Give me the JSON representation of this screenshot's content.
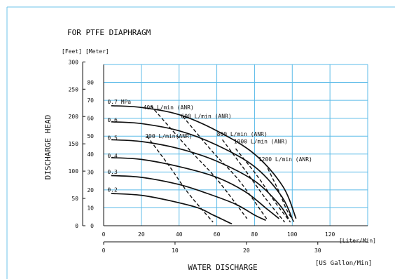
{
  "chart_data": {
    "type": "line",
    "title": "FOR PTFE DIAPHRAGM",
    "xlabel": "WATER DISCHARGE",
    "ylabel": "DISCHARGE HEAD",
    "x_unit_primary": "[Liter/Min]",
    "x_unit_secondary": "[US Gallon/Min]",
    "y_unit_feet": "[Feet]",
    "y_unit_meter": "[Meter]",
    "x_range": [
      0,
      140
    ],
    "y_range": [
      0,
      90
    ],
    "grid": true,
    "x_ticks": [
      {
        "value": 0,
        "label": "0"
      },
      {
        "value": 20,
        "label": "20"
      },
      {
        "value": 40,
        "label": "40"
      },
      {
        "value": 60,
        "label": "60"
      },
      {
        "value": 80,
        "label": "80"
      },
      {
        "value": 100,
        "label": "100"
      },
      {
        "value": 120,
        "label": "120"
      }
    ],
    "y_ticks_meter": [
      {
        "value": 0,
        "label": "0"
      },
      {
        "value": 10,
        "label": "10"
      },
      {
        "value": 20,
        "label": "20"
      },
      {
        "value": 30,
        "label": "30"
      },
      {
        "value": 40,
        "label": "40"
      },
      {
        "value": 50,
        "label": "50"
      },
      {
        "value": 60,
        "label": "60"
      },
      {
        "value": 70,
        "label": "70"
      },
      {
        "value": 80,
        "label": "80"
      }
    ],
    "y_ticks_feet": [
      {
        "value": 0,
        "label": "0"
      },
      {
        "value": 50,
        "label": "50"
      },
      {
        "value": 100,
        "label": "100"
      },
      {
        "value": 150,
        "label": "150"
      },
      {
        "value": 200,
        "label": "200"
      },
      {
        "value": 250,
        "label": "250"
      },
      {
        "value": 300,
        "label": "300"
      }
    ],
    "x_ticks_gallon": [
      {
        "value": 0,
        "label": "0"
      },
      {
        "value": 10,
        "label": "10"
      },
      {
        "value": 20,
        "label": "20"
      },
      {
        "value": 30,
        "label": "30"
      }
    ],
    "series": [
      {
        "name": "0.7 MPa",
        "x": [
          4,
          20,
          40,
          60,
          80,
          95,
          102
        ],
        "y": [
          67,
          66,
          62,
          53,
          40,
          22,
          4
        ]
      },
      {
        "name": "0.6",
        "x": [
          4,
          20,
          40,
          60,
          80,
          94,
          100
        ],
        "y": [
          58,
          57,
          53,
          45,
          33,
          17,
          4
        ]
      },
      {
        "name": "0.5",
        "x": [
          4,
          20,
          40,
          60,
          80,
          93,
          98
        ],
        "y": [
          48,
          47,
          43,
          36,
          25,
          12,
          4
        ]
      },
      {
        "name": "0.4",
        "x": [
          4,
          20,
          40,
          60,
          75,
          87,
          93
        ],
        "y": [
          38,
          37,
          33,
          27,
          19,
          9,
          4
        ]
      },
      {
        "name": "0.3",
        "x": [
          4,
          20,
          40,
          55,
          70,
          80,
          86
        ],
        "y": [
          28,
          27,
          23,
          18,
          12,
          6,
          3
        ]
      },
      {
        "name": "0.2",
        "x": [
          4,
          20,
          35,
          50,
          58,
          64,
          68
        ],
        "y": [
          18,
          17,
          14,
          10,
          6,
          3,
          1
        ]
      }
    ],
    "air_consumption_lines": [
      {
        "name": "200 L/min (ANR)",
        "x": [
          23,
          35,
          45,
          58
        ],
        "y": [
          50,
          33,
          18,
          2
        ]
      },
      {
        "name": "400 L/min (ANR)",
        "x": [
          25,
          45,
          60,
          76
        ],
        "y": [
          67,
          43,
          26,
          4
        ]
      },
      {
        "name": "600 L/min (ANR)",
        "x": [
          42,
          58,
          72,
          87
        ],
        "y": [
          61,
          41,
          25,
          3
        ]
      },
      {
        "name": "800 L/min (ANR)",
        "x": [
          63,
          75,
          86,
          96
        ],
        "y": [
          48,
          31,
          15,
          2
        ]
      },
      {
        "name": "1000 L/min (ANR)",
        "x": [
          70,
          82,
          91,
          99
        ],
        "y": [
          43,
          27,
          13,
          2
        ]
      },
      {
        "name": "1200 L/min (ANR)",
        "x": [
          87,
          93,
          97,
          101
        ],
        "y": [
          32,
          19,
          9,
          2
        ]
      }
    ],
    "series_labels": [
      {
        "text": "0.7 MPa",
        "x": 2,
        "y": 68
      },
      {
        "text": "0.6",
        "x": 2,
        "y": 58
      },
      {
        "text": "0.5",
        "x": 2,
        "y": 48
      },
      {
        "text": "0.4",
        "x": 2,
        "y": 38
      },
      {
        "text": "0.3",
        "x": 2,
        "y": 29
      },
      {
        "text": "0.2",
        "x": 2,
        "y": 19
      }
    ],
    "air_labels": [
      {
        "text": "400 L/min (ANR)",
        "x": 21,
        "y": 65
      },
      {
        "text": "600 L/min (ANR)",
        "x": 41,
        "y": 60
      },
      {
        "text": "200 L/min(ANR)",
        "x": 22,
        "y": 49
      },
      {
        "text": "800 L/min (ANR)",
        "x": 60,
        "y": 50
      },
      {
        "text": "1000 L/min (ANR)",
        "x": 69,
        "y": 46
      },
      {
        "text": "1200 L/min (ANR)",
        "x": 82,
        "y": 36
      }
    ]
  }
}
